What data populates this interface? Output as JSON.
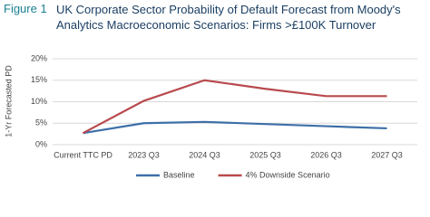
{
  "figure_label": "Figure 1",
  "chart_data": {
    "type": "line",
    "title": "UK Corporate Sector Probability of Default Forecast from Moody's Analytics Macroeconomic Scenarios: Firms >£100K Turnover",
    "y_label": "1-Yr Forecasted PD",
    "categories": [
      "Current TTC PD",
      "2023 Q3",
      "2024 Q3",
      "2025 Q3",
      "2026 Q3",
      "2027 Q3"
    ],
    "series": [
      {
        "name": "Baseline",
        "color": "#3d6fa8",
        "values": [
          2.7,
          5.0,
          5.3,
          4.8,
          4.3,
          3.8
        ]
      },
      {
        "name": "4% Downside Scenario",
        "color": "#b84a4e",
        "values": [
          2.7,
          10.2,
          15.0,
          13.0,
          11.3,
          11.3
        ]
      }
    ],
    "ylim": [
      0,
      20
    ],
    "yticks": [
      {
        "value": 0,
        "label": "0%"
      },
      {
        "value": 5,
        "label": "5%"
      },
      {
        "value": 10,
        "label": "10%"
      },
      {
        "value": 15,
        "label": "15%"
      },
      {
        "value": 20,
        "label": "20%"
      }
    ],
    "grid": true
  }
}
